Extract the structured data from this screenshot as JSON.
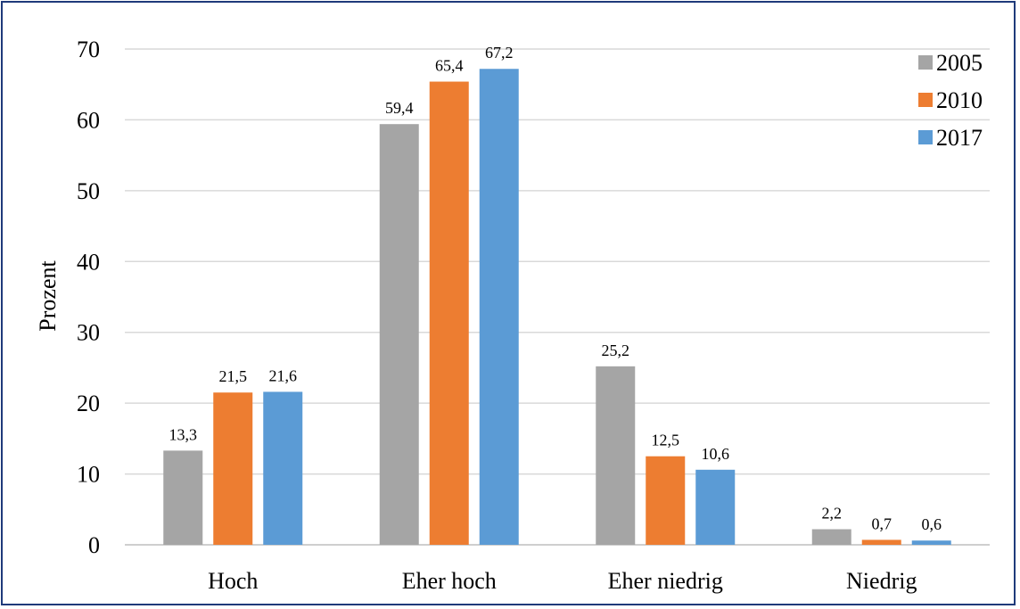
{
  "chart_data": {
    "type": "bar",
    "categories": [
      "Hoch",
      "Eher hoch",
      "Eher niedrig",
      "Niedrig"
    ],
    "series": [
      {
        "name": "2005",
        "color": "#a5a5a5",
        "values": [
          13.3,
          59.4,
          25.2,
          2.2
        ],
        "labels": [
          "13,3",
          "59,4",
          "25,2",
          "2,2"
        ]
      },
      {
        "name": "2010",
        "color": "#ed7d31",
        "values": [
          21.5,
          65.4,
          12.5,
          0.7
        ],
        "labels": [
          "21,5",
          "65,4",
          "12,5",
          "0,7"
        ]
      },
      {
        "name": "2017",
        "color": "#5b9bd5",
        "values": [
          21.6,
          67.2,
          10.6,
          0.6
        ],
        "labels": [
          "21,6",
          "67,2",
          "10,6",
          "0,6"
        ]
      }
    ],
    "ylabel": "Prozent",
    "ylim": [
      0,
      70
    ],
    "yticks": [
      0,
      10,
      20,
      30,
      40,
      50,
      60,
      70
    ],
    "grid": true,
    "legend_position": "top-right"
  }
}
